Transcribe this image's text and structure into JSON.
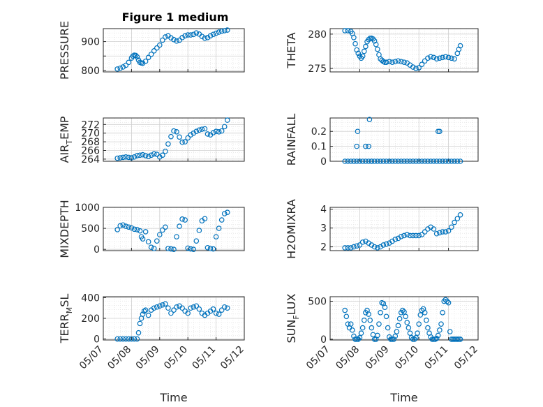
{
  "figure": {
    "title": "Figure 1 medium"
  },
  "chart_data": [
    {
      "type": "scatter",
      "id": "pressure",
      "ylabel": "PRESSURE",
      "xlim": [
        "05/07",
        "05/12"
      ],
      "ylim": [
        795,
        945
      ],
      "yticks": [
        800,
        850,
        900
      ],
      "ytick_labels": [
        "800",
        "",
        "900"
      ],
      "xticks": [
        "05/07",
        "05/08",
        "05/09",
        "05/10",
        "05/11",
        "05/12"
      ],
      "show_xticklabels": false,
      "grid": true,
      "series": [
        {
          "x": [
            0.5,
            0.6,
            0.7,
            0.8,
            0.9,
            1.0,
            1.05,
            1.1,
            1.15,
            1.2,
            1.25,
            1.3,
            1.35,
            1.4,
            1.5,
            1.6,
            1.7,
            1.8,
            1.9,
            2.0,
            2.1,
            2.2,
            2.3,
            2.4,
            2.5,
            2.6,
            2.7,
            2.8,
            2.9,
            3.0,
            3.1,
            3.2,
            3.3,
            3.4,
            3.5,
            3.6,
            3.7,
            3.8,
            3.9,
            4.0,
            4.1,
            4.2,
            4.3,
            4.4
          ],
          "y": [
            805,
            808,
            812,
            818,
            828,
            843,
            850,
            853,
            852,
            847,
            836,
            828,
            826,
            825,
            832,
            845,
            856,
            868,
            878,
            888,
            905,
            916,
            920,
            913,
            907,
            902,
            905,
            914,
            920,
            923,
            923,
            925,
            930,
            926,
            918,
            912,
            914,
            920,
            925,
            929,
            933,
            936,
            938,
            940
          ]
        }
      ]
    },
    {
      "type": "scatter",
      "id": "theta",
      "ylabel": "THETA",
      "xlim": [
        "05/07",
        "05/12"
      ],
      "ylim": [
        274.5,
        280.8
      ],
      "yticks": [
        275,
        280
      ],
      "ytick_labels": [
        "275",
        "280"
      ],
      "xticks": [
        "05/07",
        "05/08",
        "05/09",
        "05/10",
        "05/11",
        "05/12"
      ],
      "show_xticklabels": false,
      "grid": true,
      "series": [
        {
          "x": [
            0.5,
            0.6,
            0.7,
            0.75,
            0.8,
            0.85,
            0.9,
            0.95,
            1.0,
            1.05,
            1.1,
            1.15,
            1.2,
            1.25,
            1.3,
            1.35,
            1.4,
            1.45,
            1.5,
            1.55,
            1.6,
            1.65,
            1.7,
            1.75,
            1.8,
            1.85,
            1.9,
            2.0,
            2.1,
            2.2,
            2.3,
            2.4,
            2.5,
            2.6,
            2.7,
            2.8,
            2.9,
            3.0,
            3.1,
            3.2,
            3.3,
            3.4,
            3.5,
            3.6,
            3.7,
            3.8,
            3.9,
            4.0,
            4.1,
            4.2,
            4.3,
            4.35,
            4.4
          ],
          "y": [
            280.5,
            280.5,
            280.4,
            280.1,
            279.5,
            278.6,
            277.7,
            277.2,
            276.8,
            276.5,
            276.8,
            277.5,
            278.2,
            278.9,
            279.2,
            279.4,
            279.4,
            279.3,
            279.0,
            278.5,
            277.8,
            277.0,
            276.4,
            276.2,
            276.0,
            275.9,
            275.9,
            276.0,
            275.9,
            276.0,
            276.1,
            276.0,
            275.9,
            275.8,
            275.5,
            275.2,
            275.0,
            275.1,
            275.6,
            276.1,
            276.5,
            276.7,
            276.6,
            276.4,
            276.5,
            276.6,
            276.7,
            276.6,
            276.5,
            276.4,
            277.2,
            277.8,
            278.3
          ]
        }
      ]
    },
    {
      "type": "scatter",
      "id": "air_temp",
      "ylabel_parts": [
        "AIR",
        "T",
        "EMP"
      ],
      "xlim": [
        "05/07",
        "05/12"
      ],
      "ylim": [
        263.5,
        273.5
      ],
      "yticks": [
        264,
        266,
        268,
        270,
        272
      ],
      "ytick_labels": [
        "264",
        "266",
        "268",
        "270",
        "272"
      ],
      "xticks": [
        "05/07",
        "05/08",
        "05/09",
        "05/10",
        "05/11",
        "05/12"
      ],
      "show_xticklabels": false,
      "grid": true,
      "series": [
        {
          "x": [
            0.5,
            0.6,
            0.7,
            0.8,
            0.9,
            1.0,
            1.1,
            1.2,
            1.3,
            1.4,
            1.5,
            1.6,
            1.7,
            1.8,
            1.9,
            2.0,
            2.1,
            2.2,
            2.3,
            2.4,
            2.5,
            2.6,
            2.7,
            2.8,
            2.9,
            3.0,
            3.1,
            3.2,
            3.3,
            3.4,
            3.5,
            3.6,
            3.7,
            3.8,
            3.9,
            4.0,
            4.1,
            4.2,
            4.3,
            4.4
          ],
          "y": [
            264.2,
            264.3,
            264.4,
            264.5,
            264.4,
            264.3,
            264.5,
            264.8,
            264.9,
            265.0,
            264.8,
            264.6,
            264.9,
            265.2,
            265.1,
            264.5,
            264.9,
            265.8,
            267.5,
            269.2,
            270.5,
            270.3,
            269.1,
            267.9,
            268.0,
            268.9,
            269.6,
            270.0,
            270.4,
            270.7,
            270.9,
            271.0,
            269.8,
            269.6,
            270.1,
            270.4,
            270.3,
            270.5,
            271.5,
            273.0
          ]
        }
      ]
    },
    {
      "type": "scatter",
      "id": "rainfall",
      "ylabel": "RAINFALL",
      "xlim": [
        "05/07",
        "05/12"
      ],
      "ylim": [
        0,
        0.29
      ],
      "yticks": [
        0,
        0.1,
        0.2
      ],
      "ytick_labels": [
        "0",
        "0.1",
        "0.2"
      ],
      "xticks": [
        "05/07",
        "05/08",
        "05/09",
        "05/10",
        "05/11",
        "05/12"
      ],
      "show_xticklabels": false,
      "grid": true,
      "series": [
        {
          "x": [
            0.5,
            0.6,
            0.7,
            0.8,
            0.9,
            1.0,
            1.1,
            1.2,
            1.3,
            1.4,
            1.5,
            1.6,
            1.7,
            1.8,
            1.9,
            2.0,
            2.1,
            2.2,
            2.3,
            2.4,
            2.5,
            2.6,
            2.7,
            2.8,
            2.9,
            3.0,
            3.1,
            3.2,
            3.3,
            3.4,
            3.5,
            3.6,
            3.7,
            3.8,
            3.9,
            4.0,
            4.1,
            4.2,
            4.3,
            4.4,
            0.9,
            0.93,
            1.2,
            1.33,
            1.3,
            1.4,
            3.65,
            3.7
          ],
          "y": [
            0,
            0,
            0,
            0,
            0,
            0,
            0,
            0,
            0,
            0,
            0,
            0,
            0,
            0,
            0,
            0,
            0,
            0,
            0,
            0,
            0,
            0,
            0,
            0,
            0,
            0,
            0,
            0,
            0,
            0,
            0,
            0,
            0,
            0,
            0,
            0,
            0,
            0,
            0,
            0,
            0.1,
            0.2,
            0.1,
            0.28,
            0.1,
            0,
            0.2,
            0.2
          ]
        }
      ]
    },
    {
      "type": "scatter",
      "id": "mixdepth",
      "ylabel": "MIXDEPTH",
      "xlim": [
        "05/07",
        "05/12"
      ],
      "ylim": [
        -30,
        1000
      ],
      "yticks": [
        0,
        500,
        1000
      ],
      "ytick_labels": [
        "0",
        "500",
        "1000"
      ],
      "xticks": [
        "05/07",
        "05/08",
        "05/09",
        "05/10",
        "05/11",
        "05/12"
      ],
      "show_xticklabels": false,
      "grid": true,
      "series": [
        {
          "x": [
            0.5,
            0.6,
            0.7,
            0.8,
            0.9,
            1.0,
            1.1,
            1.2,
            1.3,
            1.35,
            1.4,
            1.5,
            1.6,
            1.7,
            1.8,
            1.9,
            2.0,
            2.1,
            2.2,
            2.3,
            2.4,
            2.5,
            2.6,
            2.7,
            2.8,
            2.9,
            3.0,
            3.1,
            3.2,
            3.3,
            3.4,
            3.5,
            3.6,
            3.7,
            3.8,
            3.9,
            4.0,
            4.1,
            4.2,
            4.3,
            4.4
          ],
          "y": [
            470,
            560,
            580,
            550,
            530,
            510,
            480,
            470,
            440,
            300,
            250,
            420,
            180,
            50,
            20,
            200,
            350,
            460,
            530,
            20,
            10,
            0,
            300,
            550,
            720,
            700,
            30,
            10,
            0,
            200,
            450,
            680,
            730,
            40,
            20,
            10,
            300,
            500,
            700,
            850,
            880
          ]
        }
      ]
    },
    {
      "type": "scatter",
      "id": "h2omixra",
      "ylabel": "H2OMIXRA",
      "xlim": [
        "05/07",
        "05/12"
      ],
      "ylim": [
        1.8,
        4.1
      ],
      "yticks": [
        2,
        3,
        4
      ],
      "ytick_labels": [
        "2",
        "3",
        "4"
      ],
      "xticks": [
        "05/07",
        "05/08",
        "05/09",
        "05/10",
        "05/11",
        "05/12"
      ],
      "show_xticklabels": false,
      "grid": true,
      "series": [
        {
          "x": [
            0.5,
            0.6,
            0.7,
            0.8,
            0.9,
            1.0,
            1.1,
            1.2,
            1.3,
            1.4,
            1.5,
            1.6,
            1.7,
            1.8,
            1.9,
            2.0,
            2.1,
            2.2,
            2.3,
            2.4,
            2.5,
            2.6,
            2.7,
            2.8,
            2.9,
            3.0,
            3.1,
            3.2,
            3.3,
            3.4,
            3.5,
            3.6,
            3.7,
            3.8,
            3.9,
            4.0,
            4.1,
            4.2,
            4.3,
            4.4
          ],
          "y": [
            1.95,
            1.95,
            1.95,
            2.0,
            2.05,
            2.1,
            2.25,
            2.3,
            2.2,
            2.1,
            2.0,
            1.95,
            2.0,
            2.1,
            2.15,
            2.2,
            2.3,
            2.4,
            2.45,
            2.55,
            2.6,
            2.65,
            2.6,
            2.6,
            2.6,
            2.6,
            2.65,
            2.8,
            2.95,
            3.05,
            2.95,
            2.7,
            2.75,
            2.8,
            2.8,
            2.85,
            3.05,
            3.3,
            3.5,
            3.7
          ]
        }
      ]
    },
    {
      "type": "scatter",
      "id": "terr_msl",
      "ylabel_parts": [
        "TERR",
        "M",
        "SL"
      ],
      "xlim": [
        "05/07",
        "05/12"
      ],
      "ylim": [
        -10,
        410
      ],
      "yticks": [
        0,
        200,
        400
      ],
      "ytick_labels": [
        "0",
        "200",
        "400"
      ],
      "xticks": [
        "05/07",
        "05/08",
        "05/09",
        "05/10",
        "05/11",
        "05/12"
      ],
      "xtick_labels": [
        "05/07",
        "05/08",
        "05/09",
        "05/10",
        "05/11",
        "05/12"
      ],
      "show_xticklabels": true,
      "xlabel": "Time",
      "grid": true,
      "series": [
        {
          "x": [
            0.5,
            0.6,
            0.7,
            0.8,
            0.9,
            1.0,
            1.1,
            1.2,
            1.25,
            1.3,
            1.35,
            1.4,
            1.45,
            1.5,
            1.6,
            1.7,
            1.8,
            1.9,
            2.0,
            2.1,
            2.2,
            2.3,
            2.4,
            2.5,
            2.6,
            2.7,
            2.8,
            2.9,
            3.0,
            3.1,
            3.2,
            3.3,
            3.4,
            3.5,
            3.6,
            3.7,
            3.8,
            3.9,
            4.0,
            4.1,
            4.2,
            4.3,
            4.4
          ],
          "y": [
            0,
            0,
            0,
            0,
            0,
            0,
            0,
            0,
            60,
            150,
            200,
            240,
            270,
            280,
            230,
            280,
            300,
            310,
            320,
            330,
            340,
            300,
            250,
            280,
            310,
            320,
            300,
            270,
            250,
            300,
            310,
            320,
            290,
            250,
            230,
            250,
            270,
            290,
            250,
            240,
            280,
            310,
            300
          ]
        }
      ]
    },
    {
      "type": "scatter",
      "id": "sun_flux",
      "ylabel_parts": [
        "SUN",
        "F",
        "LUX"
      ],
      "xlim": [
        "05/07",
        "05/12"
      ],
      "ylim": [
        -10,
        560
      ],
      "yticks": [
        0,
        500
      ],
      "ytick_labels": [
        "0",
        "500"
      ],
      "xticks": [
        "05/07",
        "05/08",
        "05/09",
        "05/10",
        "05/11",
        "05/12"
      ],
      "xtick_labels": [
        "05/07",
        "05/08",
        "05/09",
        "05/10",
        "05/11",
        "05/12"
      ],
      "show_xticklabels": true,
      "xlabel": "Time",
      "grid": true,
      "series": [
        {
          "x": [
            0.5,
            0.55,
            0.6,
            0.65,
            0.7,
            0.75,
            0.8,
            0.85,
            0.9,
            0.95,
            1.0,
            1.05,
            1.1,
            1.15,
            1.2,
            1.25,
            1.3,
            1.35,
            1.4,
            1.45,
            1.5,
            1.55,
            1.6,
            1.65,
            1.7,
            1.75,
            1.8,
            1.85,
            1.9,
            1.95,
            2.0,
            2.05,
            2.1,
            2.15,
            2.2,
            2.25,
            2.3,
            2.35,
            2.4,
            2.45,
            2.5,
            2.55,
            2.6,
            2.65,
            2.7,
            2.75,
            2.8,
            2.85,
            2.9,
            2.95,
            3.0,
            3.05,
            3.1,
            3.15,
            3.2,
            3.25,
            3.3,
            3.35,
            3.4,
            3.45,
            3.5,
            3.55,
            3.6,
            3.65,
            3.7,
            3.75,
            3.8,
            3.85,
            3.9,
            3.95,
            4.0,
            4.05,
            4.1,
            4.15,
            4.2,
            4.25,
            4.3,
            4.35,
            4.4
          ],
          "y": [
            380,
            300,
            200,
            150,
            200,
            120,
            40,
            0,
            0,
            0,
            20,
            80,
            150,
            250,
            350,
            380,
            330,
            250,
            150,
            60,
            0,
            0,
            50,
            200,
            350,
            480,
            470,
            420,
            300,
            150,
            30,
            0,
            0,
            0,
            40,
            100,
            180,
            270,
            350,
            380,
            360,
            300,
            220,
            150,
            80,
            20,
            0,
            0,
            20,
            80,
            200,
            320,
            380,
            400,
            350,
            250,
            150,
            80,
            30,
            0,
            0,
            0,
            10,
            50,
            120,
            200,
            350,
            500,
            520,
            500,
            480,
            100,
            0,
            0,
            0,
            0,
            0,
            0,
            0
          ]
        }
      ]
    }
  ]
}
